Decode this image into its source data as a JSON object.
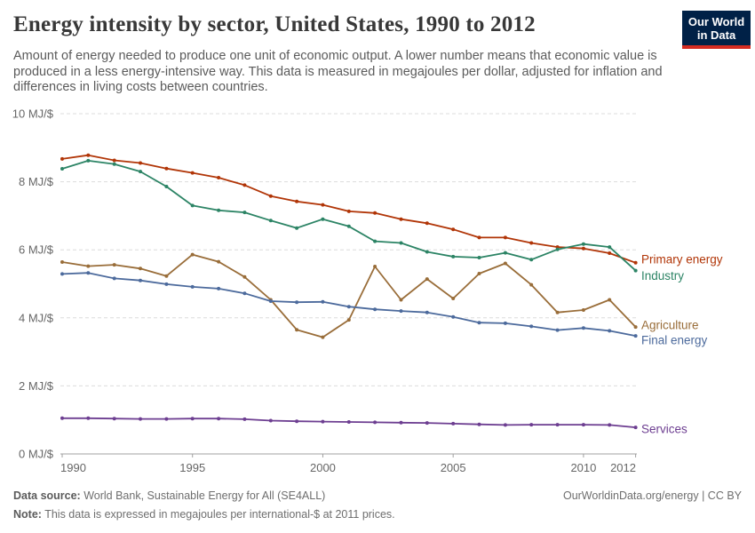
{
  "header": {
    "title": "Energy intensity by sector, United States, 1990 to 2012",
    "subtitle": "Amount of energy needed to produce one unit of economic output. A lower number means that economic value is produced in a less energy-intensive way. This data is measured in megajoules per dollar, adjusted for inflation and differences in living costs between countries."
  },
  "logo": {
    "line1": "Our World",
    "line2": "in Data",
    "bg_color": "#002147",
    "stripe_color": "#d42b21"
  },
  "chart_data": {
    "type": "line",
    "title": "Energy intensity by sector, United States, 1990 to 2012",
    "unit": "MJ/$",
    "x": [
      1990,
      1991,
      1992,
      1993,
      1994,
      1995,
      1996,
      1997,
      1998,
      1999,
      2000,
      2001,
      2002,
      2003,
      2004,
      2005,
      2006,
      2007,
      2008,
      2009,
      2010,
      2011,
      2012
    ],
    "x_ticks": [
      1990,
      1995,
      2000,
      2005,
      2010,
      2012
    ],
    "y_ticks": [
      {
        "value": 0,
        "label": "0 MJ/$"
      },
      {
        "value": 2,
        "label": "2 MJ/$"
      },
      {
        "value": 4,
        "label": "4 MJ/$"
      },
      {
        "value": 6,
        "label": "6 MJ/$"
      },
      {
        "value": 8,
        "label": "8 MJ/$"
      },
      {
        "value": 10,
        "label": "10 MJ/$"
      }
    ],
    "ylim": [
      0,
      10
    ],
    "grid": "horizontal-dashed",
    "legend_position": "labels-right-of-lines",
    "colors": {
      "grid": "#dcdcdc",
      "axis": "#a0a0a0",
      "tick_text": "#666666"
    },
    "series": [
      {
        "name": "Primary energy",
        "color": "#b13507",
        "label_dy": -4,
        "values": [
          8.67,
          8.78,
          8.63,
          8.55,
          8.39,
          8.26,
          8.12,
          7.9,
          7.58,
          7.42,
          7.32,
          7.13,
          7.08,
          6.9,
          6.78,
          6.6,
          6.36,
          6.36,
          6.2,
          6.08,
          6.04,
          5.9,
          5.62
        ]
      },
      {
        "name": "Industry",
        "color": "#2c8465",
        "label_dy": 6,
        "values": [
          8.38,
          8.62,
          8.52,
          8.3,
          7.86,
          7.3,
          7.16,
          7.1,
          6.86,
          6.64,
          6.9,
          6.69,
          6.25,
          6.2,
          5.94,
          5.8,
          5.77,
          5.91,
          5.71,
          6.01,
          6.17,
          6.08,
          5.39
        ]
      },
      {
        "name": "Agriculture",
        "color": "#996d39",
        "label_dy": -2,
        "values": [
          5.64,
          5.52,
          5.56,
          5.45,
          5.23,
          5.86,
          5.65,
          5.2,
          4.53,
          3.65,
          3.43,
          3.94,
          5.51,
          4.53,
          5.14,
          4.57,
          5.3,
          5.6,
          4.97,
          4.16,
          4.23,
          4.53,
          3.73
        ]
      },
      {
        "name": "Final energy",
        "color": "#4c6a9c",
        "label_dy": 5,
        "values": [
          5.29,
          5.32,
          5.16,
          5.1,
          4.99,
          4.91,
          4.86,
          4.72,
          4.49,
          4.46,
          4.47,
          4.33,
          4.25,
          4.2,
          4.16,
          4.03,
          3.86,
          3.84,
          3.75,
          3.64,
          3.7,
          3.62,
          3.47
        ]
      },
      {
        "name": "Services",
        "color": "#6d3e91",
        "label_dy": 2,
        "values": [
          1.05,
          1.05,
          1.04,
          1.03,
          1.03,
          1.04,
          1.04,
          1.02,
          0.98,
          0.96,
          0.95,
          0.94,
          0.93,
          0.92,
          0.91,
          0.89,
          0.87,
          0.85,
          0.86,
          0.86,
          0.86,
          0.85,
          0.78
        ]
      }
    ]
  },
  "footer": {
    "source_label": "Data source:",
    "source_value": " World Bank, Sustainable Energy for All (SE4ALL)",
    "link": "OurWorldinData.org/energy",
    "separator": " | ",
    "license": "CC BY",
    "note_label": "Note:",
    "note_value": " This data is expressed in megajoules per international-$ at 2011 prices."
  }
}
